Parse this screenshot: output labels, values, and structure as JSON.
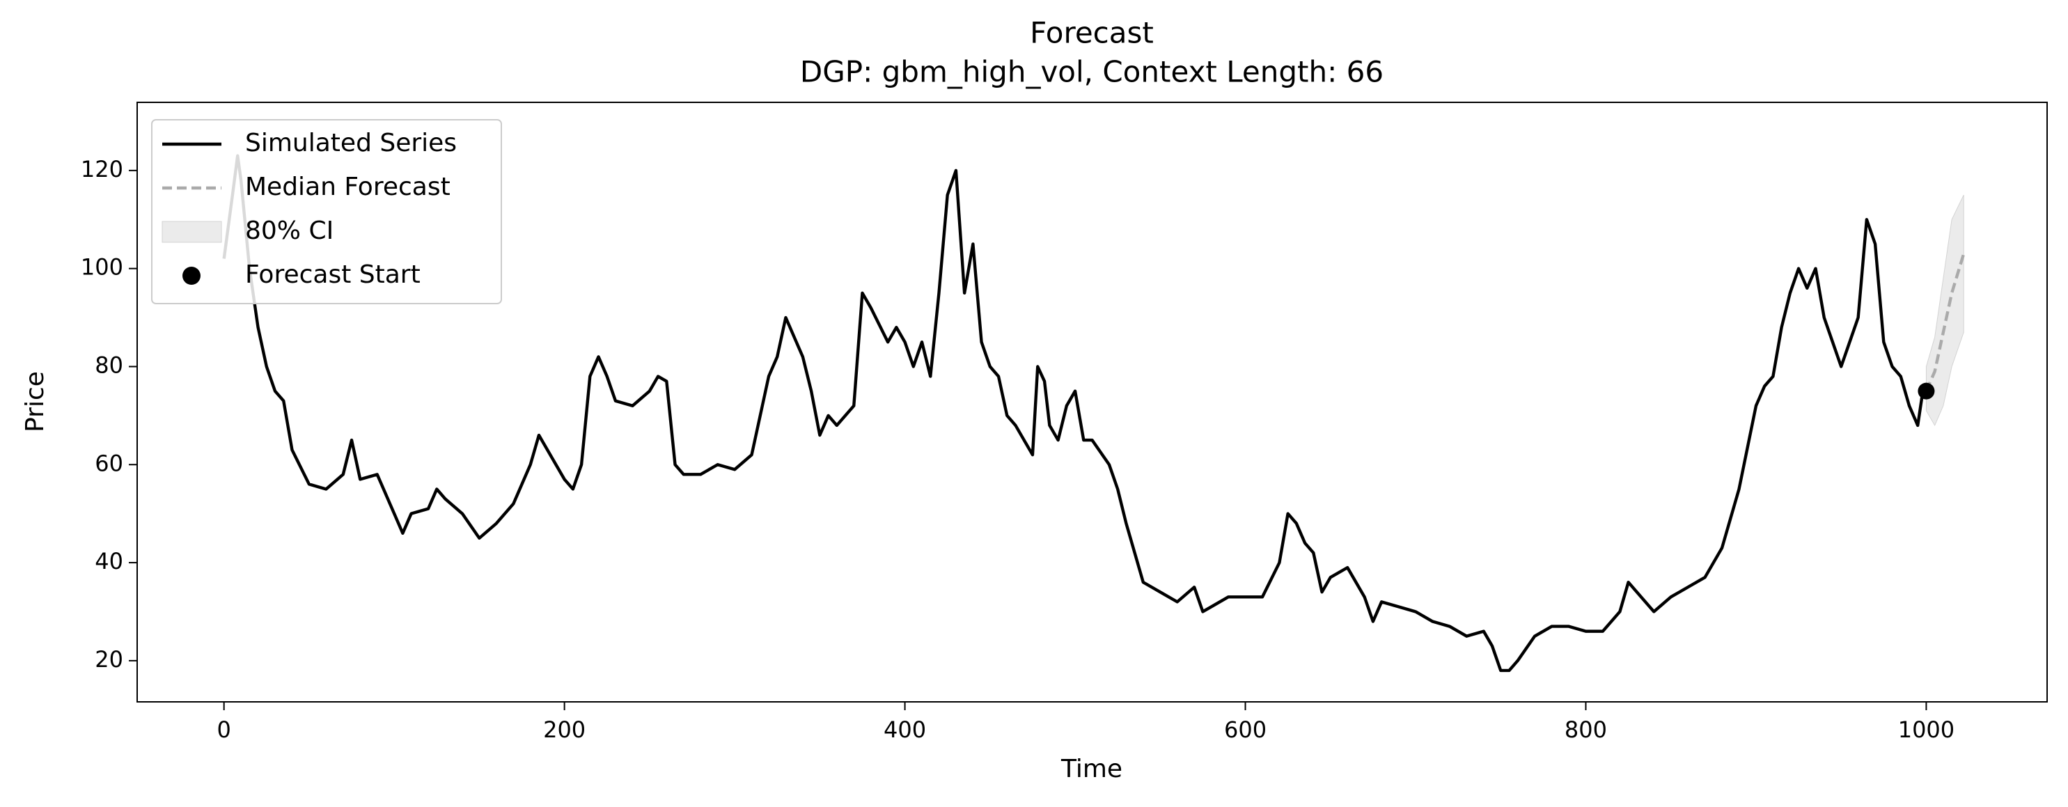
{
  "chart_data": {
    "type": "line",
    "title": "Forecast",
    "subtitle": "DGP: gbm_high_vol, Context Length: 66",
    "xlabel": "Time",
    "ylabel": "Price",
    "xlim": [
      -51,
      1071
    ],
    "ylim": [
      11.6,
      133.9
    ],
    "xticks": [
      0,
      200,
      400,
      600,
      800,
      1000
    ],
    "yticks": [
      20,
      40,
      60,
      80,
      100,
      120
    ],
    "grid": false,
    "legend": "upper left",
    "series": [
      {
        "name": "Simulated Series",
        "kind": "line",
        "linestyle": "solid",
        "color": "#000000",
        "x": [
          0,
          5,
          8,
          10,
          15,
          20,
          25,
          30,
          35,
          40,
          50,
          60,
          70,
          75,
          80,
          90,
          100,
          105,
          110,
          120,
          125,
          130,
          140,
          150,
          160,
          170,
          180,
          185,
          190,
          200,
          205,
          210,
          215,
          220,
          225,
          230,
          240,
          250,
          255,
          260,
          265,
          270,
          280,
          290,
          300,
          310,
          320,
          325,
          330,
          335,
          340,
          345,
          350,
          355,
          360,
          370,
          375,
          380,
          390,
          395,
          400,
          405,
          410,
          415,
          420,
          425,
          430,
          435,
          440,
          445,
          450,
          455,
          460,
          465,
          470,
          475,
          478,
          482,
          485,
          490,
          495,
          500,
          505,
          510,
          520,
          525,
          530,
          535,
          540,
          550,
          560,
          570,
          575,
          580,
          590,
          600,
          610,
          620,
          625,
          630,
          635,
          640,
          645,
          650,
          660,
          665,
          670,
          675,
          680,
          690,
          700,
          710,
          720,
          730,
          740,
          745,
          750,
          755,
          760,
          770,
          780,
          790,
          800,
          810,
          820,
          825,
          830,
          840,
          850,
          860,
          870,
          880,
          890,
          900,
          905,
          910,
          915,
          920,
          925,
          930,
          935,
          940,
          945,
          950,
          955,
          960,
          965,
          970,
          975,
          980,
          985,
          990,
          995,
          998
        ],
        "values": [
          102,
          115,
          123,
          118,
          100,
          88,
          80,
          75,
          73,
          63,
          56,
          55,
          58,
          65,
          57,
          58,
          50,
          46,
          50,
          51,
          55,
          53,
          50,
          45,
          48,
          52,
          60,
          66,
          63,
          57,
          55,
          60,
          78,
          82,
          78,
          73,
          72,
          75,
          78,
          77,
          60,
          58,
          58,
          60,
          59,
          62,
          78,
          82,
          90,
          86,
          82,
          75,
          66,
          70,
          68,
          72,
          95,
          92,
          85,
          88,
          85,
          80,
          85,
          78,
          95,
          115,
          120,
          95,
          105,
          85,
          80,
          78,
          70,
          68,
          65,
          62,
          80,
          77,
          68,
          65,
          72,
          75,
          65,
          65,
          60,
          55,
          48,
          42,
          36,
          34,
          32,
          35,
          30,
          31,
          33,
          33,
          33,
          40,
          50,
          48,
          44,
          42,
          34,
          37,
          39,
          36,
          33,
          28,
          32,
          31,
          30,
          28,
          27,
          25,
          26,
          23,
          18,
          18,
          20,
          25,
          27,
          27,
          26,
          26,
          30,
          36,
          34,
          30,
          33,
          35,
          37,
          43,
          55,
          72,
          76,
          78,
          88,
          95,
          100,
          96,
          100,
          90,
          85,
          80,
          85,
          90,
          110,
          105,
          85,
          80,
          78,
          72,
          68,
          75
        ]
      },
      {
        "name": "Median Forecast",
        "kind": "line",
        "linestyle": "dashed",
        "color": "#aaaaaa",
        "x": [
          1000,
          1005,
          1010,
          1015,
          1022
        ],
        "values": [
          75,
          79,
          87,
          95,
          103
        ]
      },
      {
        "name": "80% CI",
        "kind": "band",
        "color": "#d3d3d3",
        "x": [
          1000,
          1005,
          1010,
          1015,
          1022
        ],
        "lower": [
          71,
          68,
          72,
          80,
          87
        ],
        "upper": [
          80,
          86,
          98,
          110,
          115
        ]
      },
      {
        "name": "Forecast Start",
        "kind": "point",
        "color": "#000000",
        "x": [
          1000
        ],
        "values": [
          75
        ]
      }
    ]
  }
}
